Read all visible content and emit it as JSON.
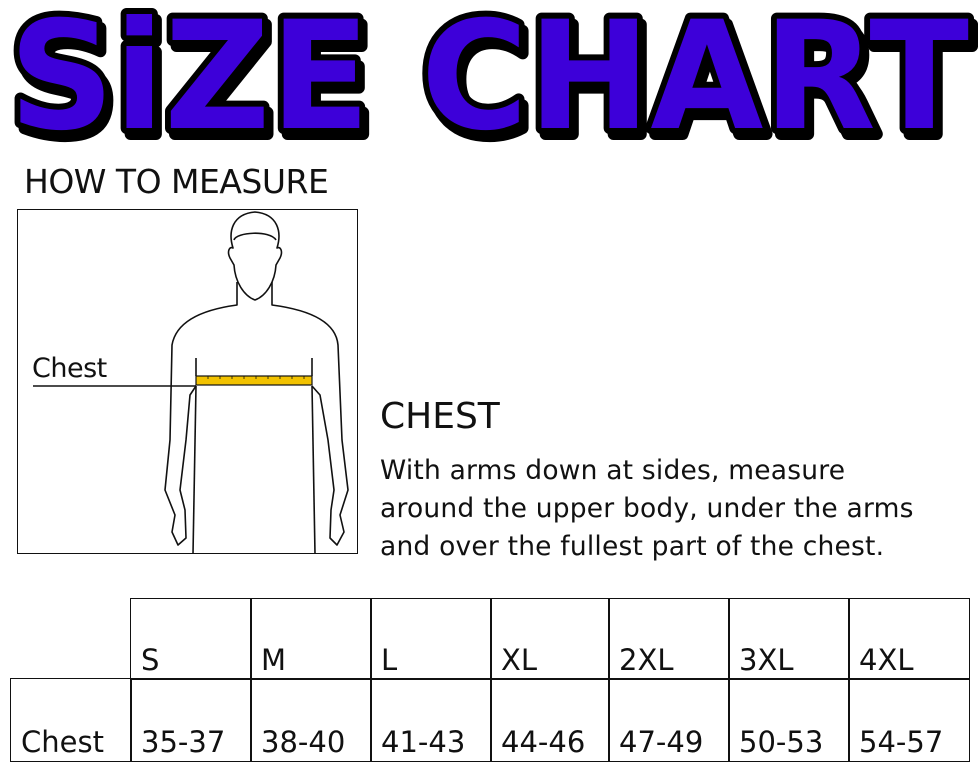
{
  "title": "SiZE CHART",
  "colors": {
    "title_fill": "#3d00d9",
    "title_outline": "#000000",
    "tape": "#f2c200"
  },
  "how_to_measure": "HOW TO MEASURE",
  "figure": {
    "chest_label": "Chest"
  },
  "chest_section": {
    "heading": "CHEST",
    "lines": [
      "With arms down at sides, measure",
      "around the upper body, under the arms",
      "and over the fullest part of the chest."
    ]
  },
  "size_table": {
    "headers": [
      "S",
      "M",
      "L",
      "XL",
      "2XL",
      "3XL",
      "4XL"
    ],
    "row_label": "Chest",
    "values": [
      "35-37",
      "38-40",
      "41-43",
      "44-46",
      "47-49",
      "50-53",
      "54-57"
    ]
  }
}
